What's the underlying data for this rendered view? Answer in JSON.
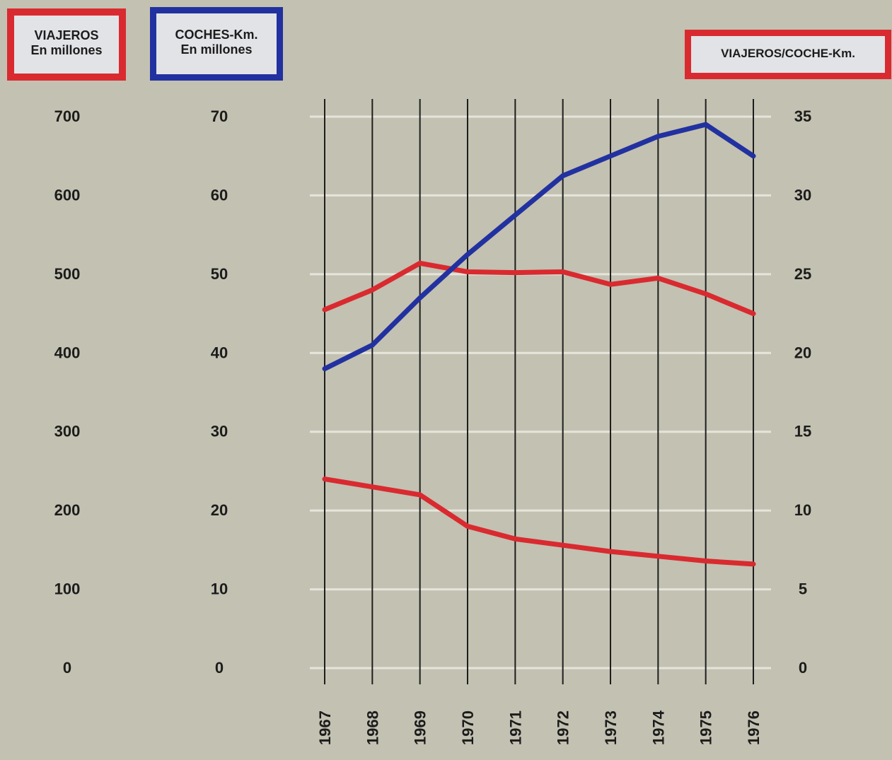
{
  "legend": {
    "viajeros": {
      "line1": "VIAJEROS",
      "line2": "En millones",
      "color": "#d92a30"
    },
    "coches": {
      "line1": "COCHES-Km.",
      "line2": "En millones",
      "color": "#2231a0"
    },
    "ratio": {
      "line1": "VIAJEROS/COCHE-Km.",
      "color": "#d92a30"
    }
  },
  "chart_data": {
    "type": "line",
    "x": [
      "1967",
      "1968",
      "1969",
      "1970",
      "1971",
      "1972",
      "1973",
      "1974",
      "1975",
      "1976"
    ],
    "axes": {
      "viajeros": {
        "ticks": [
          "0",
          "100",
          "200",
          "300",
          "400",
          "500",
          "600",
          "700"
        ],
        "ylim": [
          0,
          700
        ]
      },
      "coches": {
        "ticks": [
          "0",
          "10",
          "20",
          "30",
          "40",
          "50",
          "60",
          "70"
        ],
        "ylim": [
          0,
          70
        ]
      },
      "ratio": {
        "ticks": [
          "0",
          "5",
          "10",
          "15",
          "20",
          "25",
          "30",
          "35"
        ],
        "ylim": [
          0,
          35
        ]
      }
    },
    "grid": true,
    "series": [
      {
        "key": "viajeros",
        "axis": "viajeros",
        "color": "#d92a30",
        "values": [
          455,
          480,
          514,
          503,
          502,
          503,
          487,
          495,
          475,
          450
        ]
      },
      {
        "key": "coches",
        "axis": "coches",
        "color": "#2231a0",
        "values": [
          38,
          41,
          47,
          52.5,
          57.5,
          62.5,
          65,
          67.5,
          69,
          65
        ]
      },
      {
        "key": "ratio",
        "axis": "ratio",
        "color": "#d92a30",
        "values": [
          12,
          11.5,
          11,
          9,
          8.2,
          7.8,
          7.4,
          7.1,
          6.8,
          6.6
        ]
      }
    ]
  }
}
